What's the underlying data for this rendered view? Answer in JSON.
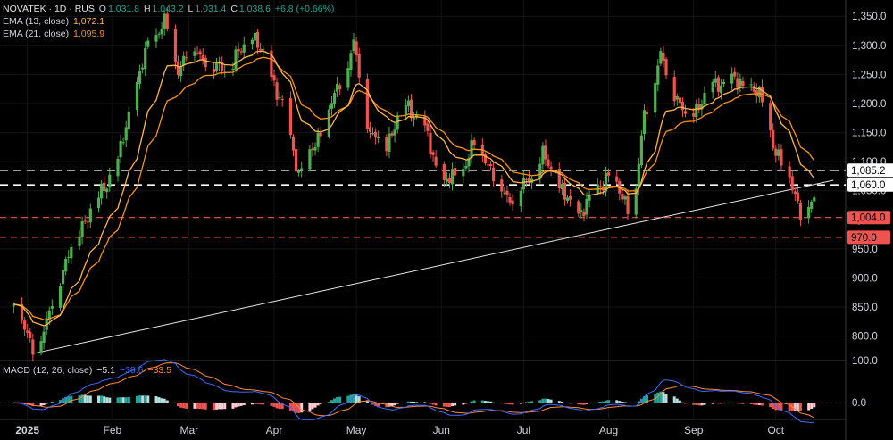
{
  "legend": {
    "symbol": "NOVATEK · 1D · RUS",
    "o_label": "O",
    "o": "1,031.8",
    "h_label": "H",
    "h": "1,043.2",
    "l_label": "L",
    "l": "1,031.4",
    "c_label": "C",
    "c": "1,038.6",
    "change": "+6.8 (+0.66%)",
    "ema13_label": "EMA (13, close)",
    "ema13_value": "1,072.1",
    "ema21_label": "EMA (21, close)",
    "ema21_value": "1,095.9",
    "macd_label": "MACD (12, 26, close)",
    "macd_hist": "−5.1",
    "macd_line": "−38.6",
    "macd_signal": "−33.5"
  },
  "colors": {
    "up": "#26a69a",
    "up_candle": "#4caf50",
    "down_candle": "#ef5350",
    "ema13": "#ffb74d",
    "ema21": "#f7931a",
    "macd_line": "#3d6cff",
    "macd_signal": "#ff8a3d",
    "level_white": "#ffffff",
    "level_red": "#ef5350"
  },
  "chart_data": [
    {
      "type": "candlestick",
      "title": "NOVATEK · 1D · RUS",
      "x_ticks": [
        "2025",
        "Feb",
        "Mar",
        "Apr",
        "May",
        "Jun",
        "Jul",
        "Aug",
        "Sep",
        "Oct"
      ],
      "y_ticks": [
        800,
        850,
        900,
        950,
        1000,
        1050,
        1100,
        1150,
        1200,
        1250,
        1300,
        1350
      ],
      "y_tick_labels": [
        "800.0",
        "850.0",
        "900.0",
        "950.0",
        "1,000.0",
        "1,050.0",
        "1,100.0",
        "1,150.0",
        "1,200.0",
        "1,250.0",
        "1,300.0",
        "1,350.0"
      ],
      "ylim": [
        758,
        1378
      ],
      "close_path": [
        [
          "2024-12-27",
          860
        ],
        [
          "2025-01-03",
          775
        ],
        [
          "2025-01-08",
          820
        ],
        [
          "2025-01-13",
          905
        ],
        [
          "2025-01-20",
          985
        ],
        [
          "2025-01-27",
          1040
        ],
        [
          "2025-02-03",
          1100
        ],
        [
          "2025-02-08",
          1200
        ],
        [
          "2025-02-14",
          1300
        ],
        [
          "2025-02-20",
          1340
        ],
        [
          "2025-02-25",
          1260
        ],
        [
          "2025-03-02",
          1300
        ],
        [
          "2025-03-10",
          1260
        ],
        [
          "2025-03-17",
          1270
        ],
        [
          "2025-03-24",
          1320
        ],
        [
          "2025-03-31",
          1250
        ],
        [
          "2025-04-05",
          1180
        ],
        [
          "2025-04-10",
          1080
        ],
        [
          "2025-04-15",
          1120
        ],
        [
          "2025-04-22",
          1200
        ],
        [
          "2025-04-27",
          1260
        ],
        [
          "2025-04-30",
          1300
        ],
        [
          "2025-05-06",
          1150
        ],
        [
          "2025-05-12",
          1130
        ],
        [
          "2025-05-18",
          1200
        ],
        [
          "2025-05-25",
          1170
        ],
        [
          "2025-06-01",
          1060
        ],
        [
          "2025-06-08",
          1080
        ],
        [
          "2025-06-14",
          1140
        ],
        [
          "2025-06-20",
          1075
        ],
        [
          "2025-06-26",
          1035
        ],
        [
          "2025-07-02",
          1065
        ],
        [
          "2025-07-08",
          1110
        ],
        [
          "2025-07-14",
          1060
        ],
        [
          "2025-07-20",
          1005
        ],
        [
          "2025-07-26",
          1040
        ],
        [
          "2025-08-01",
          1080
        ],
        [
          "2025-08-06",
          1040
        ],
        [
          "2025-08-10",
          1010
        ],
        [
          "2025-08-14",
          1180
        ],
        [
          "2025-08-20",
          1280
        ],
        [
          "2025-08-24",
          1230
        ],
        [
          "2025-08-30",
          1170
        ],
        [
          "2025-09-07",
          1230
        ],
        [
          "2025-09-14",
          1240
        ],
        [
          "2025-09-21",
          1230
        ],
        [
          "2025-09-27",
          1200
        ],
        [
          "2025-10-01",
          1110
        ],
        [
          "2025-10-06",
          1080
        ],
        [
          "2025-10-10",
          1010
        ],
        [
          "2025-10-15",
          1038.6
        ]
      ],
      "ema13_last": 1072.1,
      "ema21_last": 1095.9,
      "horizontal_levels": [
        {
          "value": 1085.2,
          "label": "1,085.2",
          "style": "white-dashed"
        },
        {
          "value": 1060.0,
          "label": "1,060.0",
          "style": "white-dashed"
        },
        {
          "value": 1004.0,
          "label": "1,004.0",
          "style": "red-dashed"
        },
        {
          "value": 970.0,
          "label": "970.0",
          "style": "red-dashed"
        }
      ],
      "trendline": {
        "from": [
          "2025-01-03",
          770
        ],
        "to": [
          "2025-10-22",
          1068
        ]
      },
      "last": {
        "open": 1031.8,
        "high": 1043.2,
        "low": 1031.4,
        "close": 1038.6,
        "change": 6.8,
        "change_pct": 0.66
      }
    },
    {
      "type": "bar",
      "title": "MACD (12, 26, close)",
      "y_ticks": [
        0,
        100
      ],
      "y_tick_labels": [
        "0.0",
        "100.0"
      ],
      "ylim": [
        -40,
        100
      ],
      "histogram_last": -5.1,
      "macd_last": -38.6,
      "signal_last": -33.5
    }
  ]
}
